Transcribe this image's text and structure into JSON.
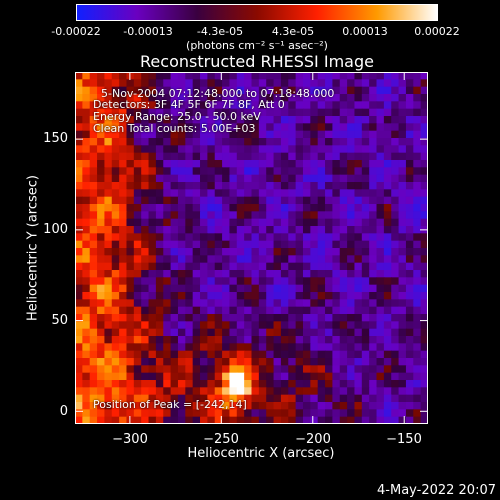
{
  "colorbar": {
    "tick_labels": [
      "-0.00022",
      "-0.00013",
      "-4.3e-05",
      "4.3e-05",
      "0.00013",
      "0.00022"
    ],
    "unit_label": "(photons cm⁻² s⁻¹ asec⁻²)",
    "colors": [
      "#1020ff",
      "#6a00c0",
      "#3a0040",
      "#8a0a00",
      "#ff2000",
      "#ff9a00",
      "#ffffff"
    ]
  },
  "chart_data": {
    "type": "heatmap",
    "title": "Reconstructed RHESSI Image",
    "xlabel": "Heliocentric X (arcsec)",
    "ylabel": "Heliocentric Y (arcsec)",
    "xlim": [
      -330,
      -137
    ],
    "ylim": [
      -7,
      187
    ],
    "xticks": [
      -300,
      -250,
      -200,
      -150
    ],
    "yticks": [
      0,
      50,
      100,
      150
    ],
    "xtick_labels": [
      "−300",
      "−250",
      "−200",
      "−150"
    ],
    "ytick_labels": [
      "0",
      "50",
      "100",
      "150"
    ],
    "color_range": [
      -0.00022,
      0.00022
    ],
    "peak_position": [
      -242,
      14
    ],
    "annotations": [
      "5-Nov-2004 07:12:48.000 to 07:18:48.000",
      "Detectors: 3F 4F 5F 6F 7F 8F, Att 0",
      "Energy Range: 25.0 - 50.0 keV",
      "Clean     Total counts: 5.00E+03"
    ],
    "peak_label": "Position of Peak = [-242,14]"
  },
  "footer": {
    "date": "4-May-2022 20:07"
  }
}
